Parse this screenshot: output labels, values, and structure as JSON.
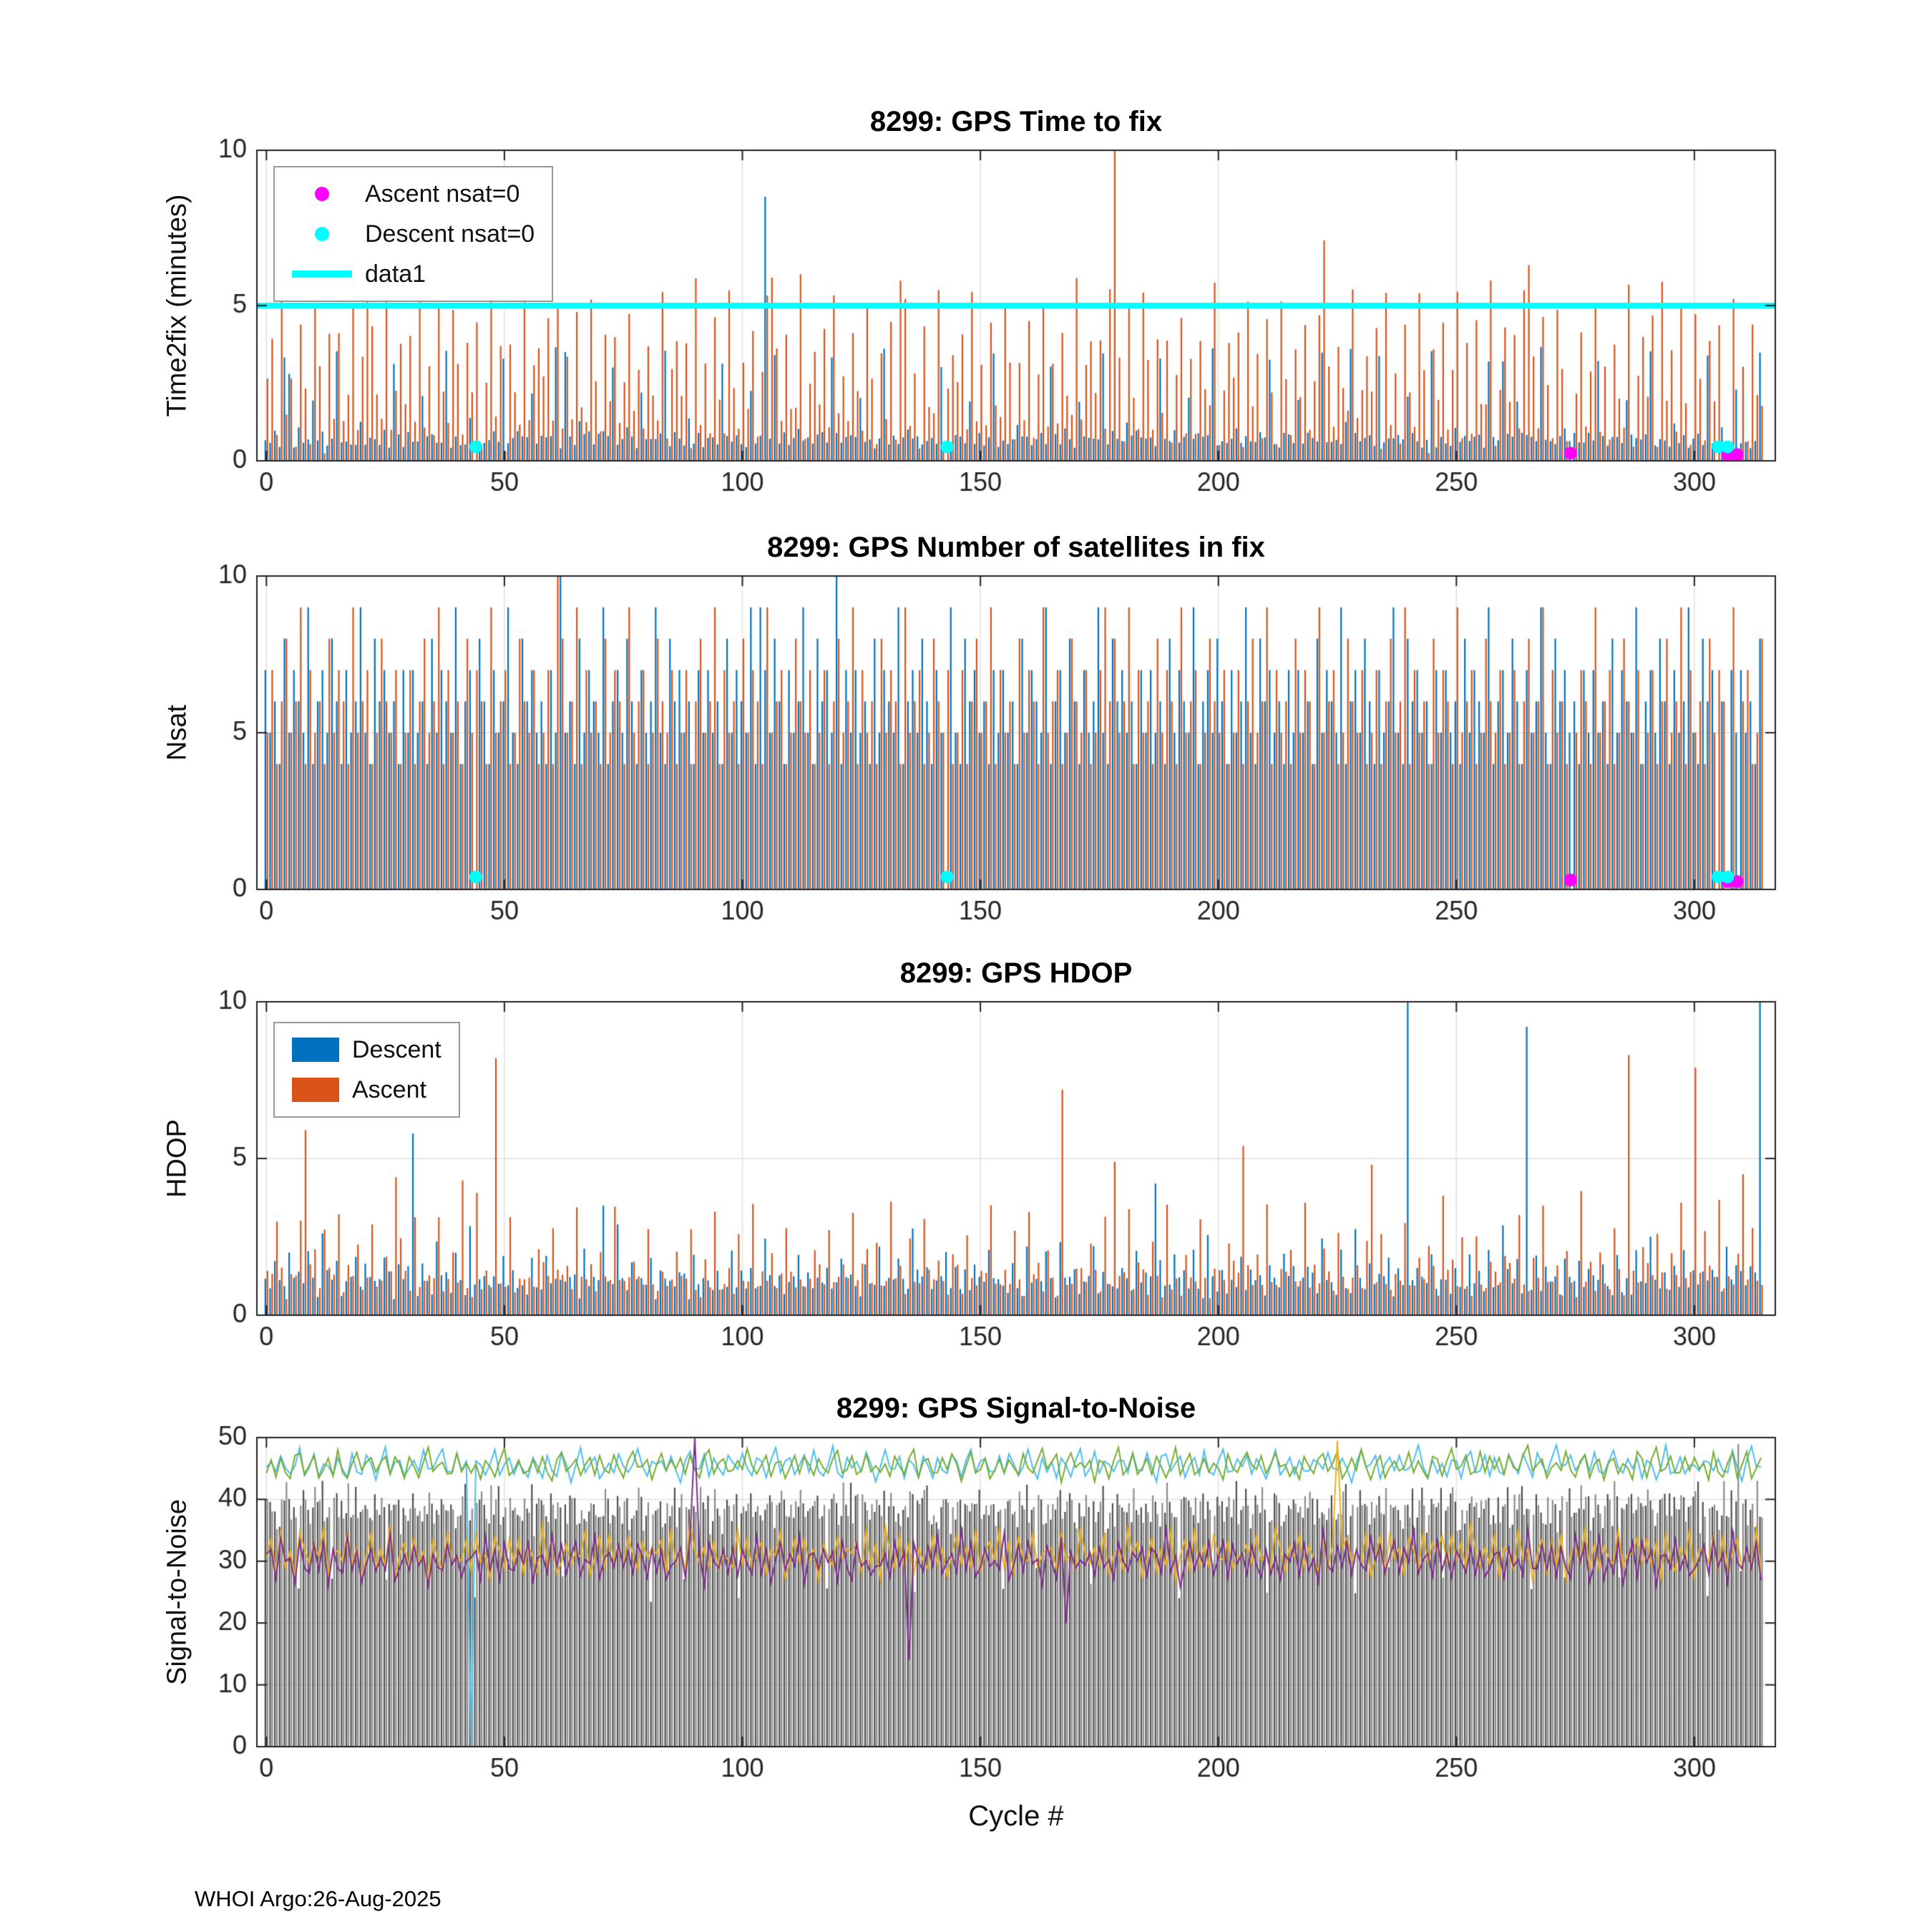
{
  "figure": {
    "xlabel": "Cycle #",
    "footer": "WHOI Argo:26-Aug-2025",
    "background": "#ffffff",
    "axis_color": "#222222",
    "grid_color": "#e0e0e0",
    "tick_label_color": "#262626"
  },
  "colors": {
    "descent_blue": "#0072BD",
    "ascent_orange": "#D95319",
    "cyan": "#00FFFF",
    "magenta": "#FF00FF",
    "snr_bar_dark": "#4f4f4f",
    "snr_bar_gray": "#8c8c8c",
    "line_lightblue": "#4DBEEE",
    "line_olive": "#77AC30",
    "line_yellow": "#EDB120",
    "line_purple": "#7E2F8E"
  },
  "chart_data": [
    {
      "type": "bar",
      "title": "8299: GPS Time to fix",
      "ylabel": "Time2fix (minutes)",
      "xlim": [
        -2,
        317
      ],
      "ylim": [
        0,
        10
      ],
      "xticks": [
        0,
        50,
        100,
        150,
        200,
        250,
        300
      ],
      "yticks": [
        0,
        5,
        10
      ],
      "n": 315,
      "grid": true,
      "hlines": [
        {
          "name": "data1",
          "y": 5,
          "color": "#00FFFF",
          "width": 8
        }
      ],
      "series": [
        {
          "name": "descent-time2fix",
          "kind": "stem",
          "color": "#0072BD",
          "xoffset": -0.22,
          "width": 2.2,
          "jitter": 0.2,
          "seed": 11,
          "pattern": [
            0.6,
            0.7,
            0.8,
            0.6,
            3.2,
            0.7,
            0.6,
            0.9,
            0.7,
            0.6,
            2.1,
            0.7,
            0.8,
            0.6,
            0.7,
            3.5,
            0.6,
            0.8,
            0.7,
            0.6,
            1.2,
            0.7,
            0.8
          ],
          "overrides": [
            [
              5,
              2.8
            ],
            [
              63,
              3.5
            ],
            [
              105,
              8.5
            ],
            [
              228,
              3.6
            ],
            [
              260,
              3.2
            ],
            [
              44,
              0
            ],
            [
              143,
              0
            ],
            [
              305,
              0
            ],
            [
              307,
              0
            ]
          ]
        },
        {
          "name": "ascent-time2fix",
          "kind": "stem",
          "color": "#D95319",
          "xoffset": 0.22,
          "width": 2.2,
          "jitter": 0.5,
          "seed": 23,
          "pattern": [
            2.3,
            4.2,
            0.8,
            5.5,
            1.5,
            3.1,
            0.9,
            4.6,
            2.2,
            1.0,
            5.2,
            2.8,
            0.7,
            3.6,
            1.8,
            4.3,
            0.9,
            2.5,
            5.0,
            1.2,
            3.3,
            0.8,
            4.1,
            2.0,
            1.4,
            5.6,
            0.9,
            2.7,
            3.8
          ],
          "overrides": [
            [
              21,
              5.7
            ],
            [
              106,
              5.9
            ],
            [
              133,
              5.8
            ],
            [
              178,
              10.2
            ],
            [
              222,
              7.1
            ],
            [
              265,
              6.3
            ],
            [
              274,
              0
            ],
            [
              307,
              0
            ],
            [
              309,
              0
            ]
          ]
        }
      ],
      "markers": [
        {
          "name": "ascent-nsat0-marker",
          "color": "#FF00FF",
          "r": 9,
          "points": [
            [
              274,
              0.25
            ],
            [
              307,
              0.2
            ],
            [
              309,
              0.2
            ]
          ]
        },
        {
          "name": "descent-nsat0-marker",
          "color": "#00FFFF",
          "r": 9,
          "points": [
            [
              44,
              0.45
            ],
            [
              143,
              0.45
            ],
            [
              305,
              0.45
            ],
            [
              307,
              0.45
            ]
          ]
        }
      ],
      "legend": {
        "items": [
          {
            "swatch": "dot",
            "color": "#FF00FF",
            "label": "Ascent nsat=0"
          },
          {
            "swatch": "dot",
            "color": "#00FFFF",
            "label": "Descent nsat=0"
          },
          {
            "swatch": "line",
            "color": "#00FFFF",
            "label": "data1"
          }
        ]
      }
    },
    {
      "type": "bar",
      "title": "8299: GPS Number of satellites in fix",
      "ylabel": "Nsat",
      "xlim": [
        -2,
        317
      ],
      "ylim": [
        0,
        10
      ],
      "xticks": [
        0,
        50,
        100,
        150,
        200,
        250,
        300
      ],
      "yticks": [
        0,
        5,
        10
      ],
      "n": 315,
      "grid": true,
      "hlines": [],
      "series": [
        {
          "name": "descent-nsat",
          "kind": "stem",
          "color": "#0072BD",
          "xoffset": -0.22,
          "width": 2.2,
          "jitter": 0,
          "seed": 31,
          "integer": true,
          "pattern": [
            7,
            5,
            6,
            4,
            8,
            5,
            7,
            6,
            5,
            9,
            4,
            6,
            7,
            5,
            8,
            6,
            4,
            7,
            5,
            6,
            9,
            5,
            4,
            8,
            6,
            7,
            5,
            6,
            4,
            7,
            5
          ],
          "overrides": [
            [
              62,
              10
            ],
            [
              104,
              9
            ],
            [
              120,
              10
            ],
            [
              44,
              0
            ],
            [
              143,
              0
            ],
            [
              305,
              0
            ],
            [
              307,
              0
            ]
          ]
        },
        {
          "name": "ascent-nsat",
          "kind": "stem",
          "color": "#D95319",
          "xoffset": 0.22,
          "width": 2.2,
          "jitter": 0,
          "seed": 43,
          "integer": true,
          "pattern": [
            5,
            7,
            4,
            6,
            8,
            5,
            6,
            9,
            4,
            7,
            5,
            6,
            4,
            8,
            5,
            7,
            6,
            4,
            9,
            5,
            6,
            7,
            4,
            5,
            8,
            6,
            5,
            7,
            4
          ],
          "overrides": [
            [
              61,
              10
            ],
            [
              176,
              9
            ],
            [
              274,
              0
            ],
            [
              307,
              0
            ],
            [
              309,
              0
            ]
          ]
        }
      ],
      "markers": [
        {
          "name": "ascent-nsat0-marker",
          "color": "#FF00FF",
          "r": 9,
          "points": [
            [
              274,
              0.3
            ],
            [
              307,
              0.25
            ],
            [
              309,
              0.25
            ]
          ]
        },
        {
          "name": "descent-nsat0-marker",
          "color": "#00FFFF",
          "r": 9,
          "points": [
            [
              44,
              0.4
            ],
            [
              143,
              0.4
            ],
            [
              305,
              0.4
            ],
            [
              307,
              0.4
            ]
          ]
        }
      ]
    },
    {
      "type": "bar",
      "title": "8299: GPS HDOP",
      "ylabel": "HDOP",
      "xlim": [
        -2,
        317
      ],
      "ylim": [
        0,
        10
      ],
      "xticks": [
        0,
        50,
        100,
        150,
        200,
        250,
        300
      ],
      "yticks": [
        0,
        5,
        10
      ],
      "n": 315,
      "grid": true,
      "hlines": [],
      "series": [
        {
          "name": "descent-hdop",
          "kind": "stem",
          "color": "#0072BD",
          "xoffset": -0.22,
          "width": 2.2,
          "jitter": 0.3,
          "seed": 57,
          "pattern": [
            1.2,
            0.9,
            1.5,
            1.1,
            0.8,
            2.2,
            1.0,
            1.3,
            0.9,
            1.8,
            1.1,
            0.8,
            2.6,
            1.2,
            1.0,
            1.5,
            0.9,
            1.3,
            1.1,
            2.0,
            0.8,
            1.4,
            1.0,
            1.2,
            0.9,
            1.6,
            1.1,
            0.8,
            1.9,
            1.0,
            1.3
          ],
          "overrides": [
            [
              31,
              5.8
            ],
            [
              71,
              3.5
            ],
            [
              187,
              4.2
            ],
            [
              240,
              10
            ],
            [
              265,
              9.2
            ],
            [
              314,
              10
            ]
          ]
        },
        {
          "name": "ascent-hdop",
          "kind": "stem",
          "color": "#D95319",
          "xoffset": 0.22,
          "width": 2.2,
          "jitter": 0.4,
          "seed": 69,
          "pattern": [
            1.4,
            1.0,
            2.8,
            1.2,
            0.9,
            1.6,
            1.1,
            3.2,
            0.9,
            1.3,
            1.8,
            1.0,
            2.4,
            1.2,
            0.9,
            3.6,
            1.1,
            1.4,
            0.9,
            2.1,
            1.2,
            1.0,
            2.9,
            1.1,
            0.9,
            1.5,
            1.3,
            1.0,
            2.2
          ],
          "overrides": [
            [
              8,
              5.9
            ],
            [
              27,
              4.4
            ],
            [
              41,
              4.3
            ],
            [
              48,
              8.2
            ],
            [
              167,
              7.2
            ],
            [
              178,
              4.9
            ],
            [
              205,
              5.4
            ],
            [
              232,
              4.8
            ],
            [
              286,
              8.3
            ],
            [
              300,
              7.9
            ],
            [
              310,
              4.5
            ]
          ]
        }
      ],
      "markers": [],
      "legend": {
        "items": [
          {
            "swatch": "rect",
            "color": "#0072BD",
            "label": "Descent"
          },
          {
            "swatch": "rect",
            "color": "#D95319",
            "label": "Ascent"
          }
        ]
      }
    },
    {
      "type": "bar",
      "title": "8299: GPS Signal-to-Noise",
      "ylabel": "Signal-to-Noise",
      "xlim": [
        -2,
        317
      ],
      "ylim": [
        0,
        50
      ],
      "xticks": [
        0,
        50,
        100,
        150,
        200,
        250,
        300
      ],
      "yticks": [
        0,
        10,
        20,
        30,
        40,
        50
      ],
      "n": 315,
      "grid": true,
      "hlines": [],
      "series": [
        {
          "name": "descent-snr-bars",
          "kind": "stem",
          "color": "#4f4f4f",
          "xoffset": -0.22,
          "width": 2.2,
          "jitter": 2,
          "seed": 71,
          "pattern": [
            39,
            38,
            40,
            37,
            39,
            41,
            38,
            24,
            40,
            39,
            37,
            38,
            41,
            39,
            29,
            40,
            38,
            37,
            39,
            41,
            38,
            40,
            36,
            39,
            37,
            40,
            38,
            39,
            41,
            37,
            38,
            40,
            39,
            36,
            38,
            40,
            39
          ],
          "overrides": []
        },
        {
          "name": "ascent-snr-bars",
          "kind": "stem",
          "color": "#8c8c8c",
          "xoffset": 0.22,
          "width": 2.2,
          "jitter": 2,
          "seed": 83,
          "pattern": [
            38,
            40,
            37,
            39,
            41,
            36,
            39,
            38,
            40,
            37,
            41,
            38,
            36,
            40,
            39,
            37,
            38,
            41,
            39,
            36,
            40,
            38,
            37,
            39,
            41,
            26,
            38,
            40,
            36,
            39,
            37,
            40,
            38,
            39,
            41,
            37,
            38
          ],
          "overrides": [
            [
              309,
              49
            ]
          ]
        },
        {
          "name": "snr-max-descent-line",
          "kind": "line",
          "color": "#4DBEEE",
          "width": 2,
          "jitter": 0.8,
          "seed": 95,
          "pattern": [
            45,
            46.5,
            44,
            47,
            45.5,
            43.5,
            46,
            48,
            44.5,
            45,
            47.5,
            44,
            46,
            45,
            43.8,
            47,
            45.5,
            44.2,
            46.8,
            45,
            44,
            47.2,
            45.8,
            43.5,
            46.2,
            48,
            44.8,
            45.5,
            47,
            44,
            45.2,
            46.5,
            43.9,
            47.5,
            45,
            44.5,
            46,
            48.2,
            45,
            44,
            46.8
          ],
          "overrides": [
            [
              43,
              0.5
            ]
          ]
        },
        {
          "name": "snr-max-ascent-line",
          "kind": "line",
          "color": "#77AC30",
          "width": 2,
          "jitter": 0.8,
          "seed": 107,
          "pattern": [
            44.5,
            46,
            43.5,
            47,
            45,
            44,
            46.5,
            48,
            44,
            45.5,
            47,
            43.8,
            45,
            46.2,
            44.5,
            47.5,
            45,
            43.6,
            46,
            47.8,
            44.2,
            45.5,
            46.8,
            43.9,
            45.2,
            47,
            44.6,
            46.4,
            45,
            43.7,
            47.2,
            45.8,
            44.3,
            46,
            48,
            44.8,
            45.4,
            46.6,
            43.5,
            45,
            47.4,
            44.5,
            46.2
          ],
          "overrides": []
        },
        {
          "name": "snr-mean-ascent-line",
          "kind": "line",
          "color": "#EDB120",
          "width": 2,
          "jitter": 1.2,
          "seed": 119,
          "pattern": [
            31,
            33,
            29,
            34,
            30,
            32,
            28,
            35,
            31,
            29,
            33,
            30,
            34,
            28,
            32,
            31,
            29,
            35,
            30,
            33,
            28,
            31,
            34,
            29,
            32,
            30,
            35,
            28,
            31,
            33,
            29,
            34,
            30,
            32,
            28,
            33,
            31,
            29,
            34,
            30,
            32
          ],
          "overrides": [
            [
              225,
              49.5
            ]
          ]
        },
        {
          "name": "snr-mean-descent-line",
          "kind": "line",
          "color": "#7E2F8E",
          "width": 2,
          "jitter": 1.2,
          "seed": 131,
          "pattern": [
            30,
            32,
            28,
            33,
            29,
            31,
            27,
            34,
            30,
            28,
            32,
            29,
            33,
            27,
            31,
            30,
            28,
            34,
            29,
            32,
            27,
            30,
            33,
            28,
            31,
            29,
            34,
            27,
            30,
            32,
            28,
            33,
            29,
            31,
            27,
            32,
            30,
            28,
            33,
            29,
            31,
            28,
            30
          ],
          "overrides": [
            [
              90,
              50
            ],
            [
              135,
              14
            ],
            [
              168,
              20
            ]
          ]
        }
      ],
      "markers": []
    }
  ]
}
